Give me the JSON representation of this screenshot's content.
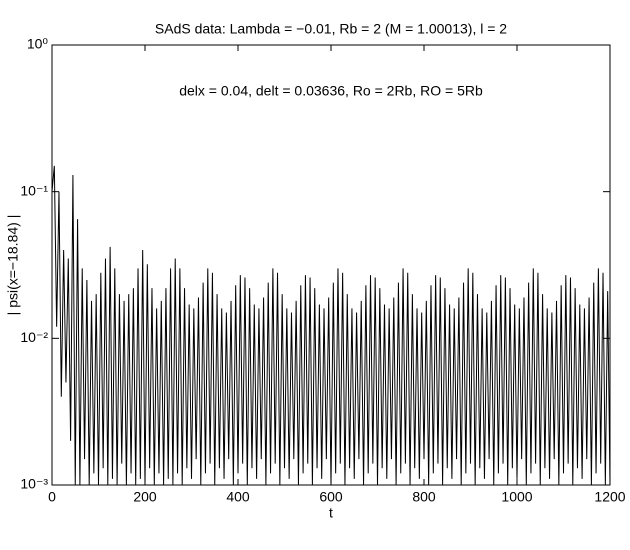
{
  "chart_data": {
    "type": "line",
    "title": "SAdS data: Lambda = −0.01, Rb = 2 (M = 1.00013), l = 2",
    "annotation": "delx = 0.04, delt = 0.03636, Ro = 2Rb, RO = 5Rb",
    "x_label": "t",
    "y_label": "| psi(x=−18.84) |",
    "color": "#000000",
    "log_y": true,
    "xlim": [
      0,
      1200
    ],
    "xticks": [
      0,
      200,
      400,
      600,
      800,
      1000,
      1200
    ],
    "ylim": [
      0.001,
      1
    ],
    "yticks": [
      {
        "value": 0.001,
        "label": "10⁻³"
      },
      {
        "value": 0.01,
        "label": "10⁻²"
      },
      {
        "value": 0.1,
        "label": "10⁻¹"
      },
      {
        "value": 1,
        "label": "10⁰"
      }
    ],
    "x": [
      0,
      5,
      10,
      15,
      20,
      25,
      30,
      35,
      40,
      45,
      50,
      55,
      60,
      65,
      70,
      75,
      80,
      85,
      90,
      95,
      100,
      105,
      110,
      115,
      120,
      125,
      130,
      135,
      140,
      145,
      150,
      155,
      160,
      165,
      170,
      175,
      180,
      185,
      190,
      195,
      200,
      205,
      210,
      215,
      220,
      225,
      230,
      235,
      240,
      245,
      250,
      255,
      260,
      265,
      270,
      275,
      280,
      285,
      290,
      295,
      300,
      305,
      310,
      315,
      320,
      325,
      330,
      335,
      340,
      345,
      350,
      355,
      360,
      365,
      370,
      375,
      380,
      385,
      390,
      395,
      400,
      405,
      410,
      415,
      420,
      425,
      430,
      435,
      440,
      445,
      450,
      455,
      460,
      465,
      470,
      475,
      480,
      485,
      490,
      495,
      500,
      505,
      510,
      515,
      520,
      525,
      530,
      535,
      540,
      545,
      550,
      555,
      560,
      565,
      570,
      575,
      580,
      585,
      590,
      595,
      600,
      605,
      610,
      615,
      620,
      625,
      630,
      635,
      640,
      645,
      650,
      655,
      660,
      665,
      670,
      675,
      680,
      685,
      690,
      695,
      700,
      705,
      710,
      715,
      720,
      725,
      730,
      735,
      740,
      745,
      750,
      755,
      760,
      765,
      770,
      775,
      780,
      785,
      790,
      795,
      800,
      805,
      810,
      815,
      820,
      825,
      830,
      835,
      840,
      845,
      850,
      855,
      860,
      865,
      870,
      875,
      880,
      885,
      890,
      895,
      900,
      905,
      910,
      915,
      920,
      925,
      930,
      935,
      940,
      945,
      950,
      955,
      960,
      965,
      970,
      975,
      980,
      985,
      990,
      995,
      1000,
      1005,
      1010,
      1015,
      1020,
      1025,
      1030,
      1035,
      1040,
      1045,
      1050,
      1055,
      1060,
      1065,
      1070,
      1075,
      1080,
      1085,
      1090,
      1095,
      1100,
      1105,
      1110,
      1115,
      1120,
      1125,
      1130,
      1135,
      1140,
      1145,
      1150,
      1155,
      1160,
      1165,
      1170,
      1175,
      1180,
      1185,
      1190,
      1195,
      1200
    ],
    "values": [
      0.1,
      0.15,
      0.012,
      0.1,
      0.004,
      0.04,
      0.005,
      0.035,
      0.002,
      0.13,
      0.001,
      0.065,
      0.001,
      0.03,
      0.0015,
      0.025,
      0.001,
      0.018,
      0.0012,
      0.02,
      0.001,
      0.028,
      0.0013,
      0.035,
      0.001,
      0.042,
      0.0011,
      0.03,
      0.001,
      0.02,
      0.0014,
      0.018,
      0.001,
      0.02,
      0.0012,
      0.022,
      0.001,
      0.03,
      0.0011,
      0.04,
      0.001,
      0.032,
      0.0013,
      0.022,
      0.001,
      0.016,
      0.0012,
      0.018,
      0.001,
      0.022,
      0.0011,
      0.03,
      0.001,
      0.035,
      0.0012,
      0.03,
      0.001,
      0.022,
      0.0013,
      0.017,
      0.0011,
      0.016,
      0.0015,
      0.019,
      0.001,
      0.024,
      0.0012,
      0.03,
      0.0014,
      0.028,
      0.001,
      0.02,
      0.0013,
      0.016,
      0.0011,
      0.015,
      0.0015,
      0.018,
      0.001,
      0.023,
      0.0012,
      0.027,
      0.0014,
      0.026,
      0.001,
      0.022,
      0.0013,
      0.017,
      0.0011,
      0.016,
      0.0015,
      0.019,
      0.001,
      0.024,
      0.0012,
      0.03,
      0.0014,
      0.028,
      0.001,
      0.02,
      0.0013,
      0.016,
      0.0011,
      0.015,
      0.0015,
      0.018,
      0.001,
      0.023,
      0.0012,
      0.027,
      0.0014,
      0.026,
      0.001,
      0.022,
      0.0013,
      0.017,
      0.0011,
      0.016,
      0.0015,
      0.019,
      0.001,
      0.024,
      0.0012,
      0.03,
      0.0014,
      0.028,
      0.001,
      0.02,
      0.0013,
      0.016,
      0.0011,
      0.015,
      0.0015,
      0.018,
      0.001,
      0.023,
      0.0012,
      0.027,
      0.0014,
      0.026,
      0.001,
      0.022,
      0.0013,
      0.017,
      0.0011,
      0.016,
      0.0015,
      0.019,
      0.001,
      0.024,
      0.0012,
      0.03,
      0.0014,
      0.028,
      0.001,
      0.02,
      0.0013,
      0.016,
      0.0011,
      0.015,
      0.0015,
      0.018,
      0.001,
      0.023,
      0.0012,
      0.027,
      0.0014,
      0.026,
      0.001,
      0.022,
      0.0013,
      0.017,
      0.0011,
      0.016,
      0.0015,
      0.019,
      0.001,
      0.024,
      0.0012,
      0.03,
      0.0014,
      0.028,
      0.001,
      0.02,
      0.0013,
      0.016,
      0.0011,
      0.015,
      0.0015,
      0.018,
      0.001,
      0.023,
      0.0012,
      0.027,
      0.0014,
      0.026,
      0.001,
      0.022,
      0.0013,
      0.017,
      0.0011,
      0.016,
      0.0015,
      0.019,
      0.001,
      0.024,
      0.0012,
      0.03,
      0.0014,
      0.028,
      0.001,
      0.02,
      0.0013,
      0.016,
      0.0011,
      0.015,
      0.0015,
      0.018,
      0.001,
      0.023,
      0.0012,
      0.027,
      0.0014,
      0.026,
      0.001,
      0.022,
      0.0013,
      0.017,
      0.0011,
      0.016,
      0.0015,
      0.019,
      0.001,
      0.024,
      0.0012,
      0.03,
      0.0014,
      0.028,
      0.001,
      0.021,
      0.001
    ]
  }
}
